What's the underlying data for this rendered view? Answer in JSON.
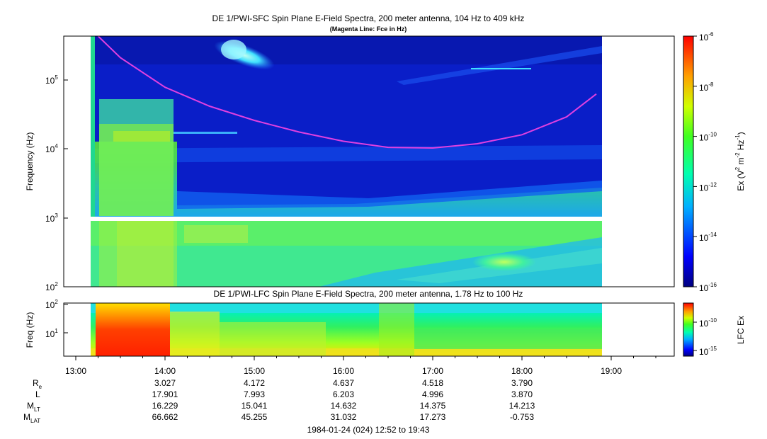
{
  "panels": {
    "sfc": {
      "title": "DE 1/PWI-SFC  Spin Plane E-Field Spectra, 200 meter antenna, 104 Hz to 409 kHz",
      "subtitle": "(Magenta Line: Fce in Hz)",
      "ylabel": "Frequency (Hz)",
      "ticks": [
        "10",
        "10",
        "10",
        "10"
      ],
      "tick_exps": [
        "5",
        "4",
        "3",
        "2"
      ],
      "colorbar_label_main": "Ex (V",
      "colorbar_label_units": [
        "2",
        " m",
        "-2",
        " Hz",
        "-1",
        ")"
      ],
      "colorbar_ticks": [
        "10",
        "10",
        "10",
        "10",
        "10",
        "10"
      ],
      "colorbar_exps": [
        "-6",
        "-8",
        "-10",
        "-12",
        "-14",
        "-16"
      ]
    },
    "lfc": {
      "title": "DE 1/PWI-LFC  Spin Plane E-Field Spectra, 200 meter antenna, 1.78 Hz to 100 Hz",
      "ylabel": "Freq (Hz)",
      "ticks": [
        "10",
        "10"
      ],
      "tick_exps": [
        "2",
        "1"
      ],
      "colorbar_label": "LFC Ex",
      "colorbar_ticks": [
        "10",
        "10"
      ],
      "colorbar_exps": [
        "-10",
        "-15"
      ]
    }
  },
  "time_axis": [
    "13:00",
    "14:00",
    "15:00",
    "16:00",
    "17:00",
    "18:00",
    "19:00"
  ],
  "ephemeris": {
    "labels": {
      "re": "R",
      "re_sub": "e",
      "l": "L",
      "mlt": "M",
      "mlt_sub": "LT",
      "mlat": "M",
      "mlat_sub": "LAT"
    },
    "re": [
      "3.027",
      "4.172",
      "4.637",
      "4.518",
      "3.790"
    ],
    "l": [
      "17.901",
      "7.993",
      "6.203",
      "4.996",
      "3.870"
    ],
    "mlt": [
      "16.229",
      "15.041",
      "14.632",
      "14.375",
      "14.213"
    ],
    "mlat": [
      "66.662",
      "45.255",
      "31.032",
      "17.273",
      "-0.753"
    ]
  },
  "footer": "1984-01-24 (024) 12:52 to 19:43",
  "chart_data": [
    {
      "type": "heatmap",
      "title": "DE 1/PWI-SFC  Spin Plane E-Field Spectra, 200 meter antenna, 104 Hz to 409 kHz",
      "subtitle": "(Magenta Line: Fce in Hz)",
      "xlabel": "",
      "ylabel": "Frequency (Hz)",
      "y_scale": "log",
      "ylim": [
        100,
        409000
      ],
      "xlim": [
        "12:52",
        "19:43"
      ],
      "colorbar": {
        "label": "Ex (V^2 m^-2 Hz^-1)",
        "scale": "log",
        "range": [
          1e-16,
          1e-06
        ]
      },
      "overlay_line": {
        "name": "Fce in Hz",
        "color": "#e040e0",
        "x": [
          "13:15",
          "13:30",
          "14:00",
          "14:30",
          "15:00",
          "15:30",
          "16:00",
          "16:30",
          "17:00",
          "17:30",
          "18:00",
          "18:30",
          "18:50"
        ],
        "y": [
          409000,
          200000,
          75000,
          40000,
          25000,
          17000,
          12500,
          10200,
          10000,
          11500,
          15500,
          28000,
          60000
        ]
      }
    },
    {
      "type": "heatmap",
      "title": "DE 1/PWI-LFC  Spin Plane E-Field Spectra, 200 meter antenna, 1.78 Hz to 100 Hz",
      "xlabel": "",
      "ylabel": "Freq (Hz)",
      "y_scale": "log",
      "ylim": [
        1.78,
        100
      ],
      "xlim": [
        "12:52",
        "19:43"
      ],
      "colorbar": {
        "label": "LFC Ex",
        "scale": "log"
      }
    }
  ],
  "colors": {
    "magenta": "#e040e0",
    "background_blue": "#0a1ec8"
  }
}
